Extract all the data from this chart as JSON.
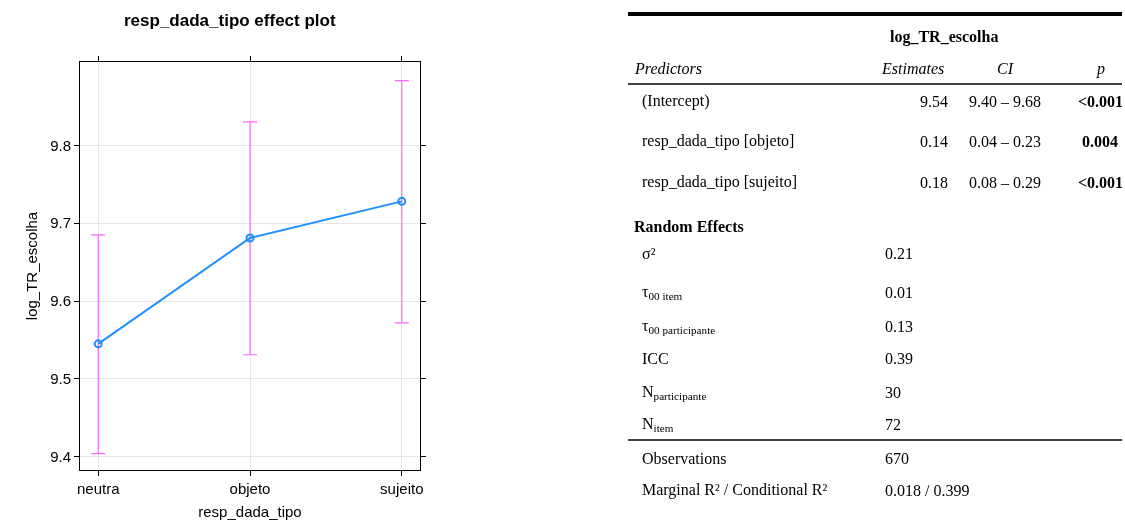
{
  "chart_data": [
    {
      "type": "line",
      "title": "resp_dada_tipo effect plot",
      "xlabel": "resp_dada_tipo",
      "ylabel": "log_TR_escolha",
      "categories": [
        "neutra",
        "objeto",
        "sujeito"
      ],
      "series": [
        {
          "color": "#1e90ff",
          "values": [
            9.545,
            9.681,
            9.728
          ],
          "errors": [
            [
              9.404,
              9.685
            ],
            [
              9.531,
              9.83
            ],
            [
              9.572,
              9.883
            ]
          ]
        }
      ],
      "ylim": [
        9.383,
        9.907
      ],
      "yticks": [
        9.4,
        9.5,
        9.6,
        9.7,
        9.8
      ],
      "grid": true,
      "marker": "circle",
      "line_style": "solid"
    },
    {
      "type": "other",
      "title": "log_TR_escolha",
      "annotations": [
        "Predictors",
        "Estimates",
        "CI",
        "p",
        "(Intercept)",
        "9.54",
        "9.40 – 9.68",
        "<0.001",
        "resp_dada_tipo [objeto]",
        "0.14",
        "0.04 – 0.23",
        "0.004",
        "resp_dada_tipo [sujeito]",
        "0.18",
        "0.08 – 0.29",
        "<0.001",
        "Random Effects",
        "σ²",
        "0.21",
        "τ$_{00 item}$",
        "0.01",
        "τ$_{00 participante}$",
        "0.13",
        "ICC",
        "0.39",
        "N$_{participante}$",
        "30",
        "N$_{item}$",
        "72",
        "Observations",
        "670",
        "Marginal R² / Conditional R²",
        "0.018 / 0.399"
      ]
    }
  ]
}
